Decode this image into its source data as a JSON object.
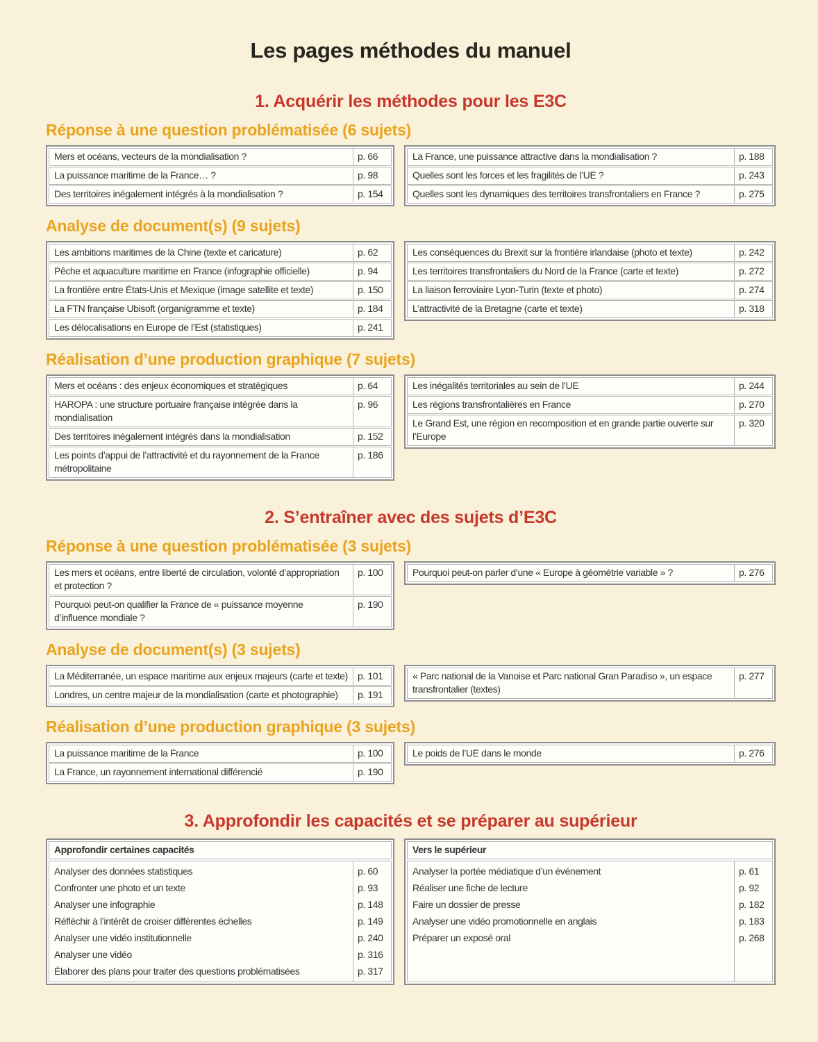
{
  "page_title": "Les pages méthodes du manuel",
  "colors": {
    "background": "#faf1da",
    "section_heading_red": "#c7382c",
    "subsection_heading_orange": "#e9a41f",
    "table_outer_border": "#8d8d8d",
    "table_inner_border": "#b3b3b3",
    "title_text": "#26261f"
  },
  "sections": [
    {
      "heading": "1. Acquérir les méthodes pour les E3C",
      "groups": [
        {
          "subheading": "Réponse à une question problématisée (6 sujets)",
          "left_rows": [
            {
              "label": "Mers et océans, vecteurs de la mondialisation ?",
              "page": "p. 66"
            },
            {
              "label": "La puissance maritime de la France… ?",
              "page": "p. 98"
            },
            {
              "label": "Des territoires inégalement intégrés à la mondialisation ?",
              "page": "p. 154"
            }
          ],
          "right_rows": [
            {
              "label": "La France, une puissance attractive dans la mondialisation ?",
              "page": "p. 188"
            },
            {
              "label": "Quelles sont les forces et les fragilités de l’UE ?",
              "page": "p. 243"
            },
            {
              "label": "Quelles sont les dynamiques des territoires transfrontaliers en France ?",
              "page": "p. 275"
            }
          ]
        },
        {
          "subheading": "Analyse de document(s) (9 sujets)",
          "left_rows": [
            {
              "label": "Les ambitions maritimes de la Chine (texte et caricature)",
              "page": "p. 62"
            },
            {
              "label": "Pêche et aquaculture maritime en France (infographie officielle)",
              "page": "p. 94"
            },
            {
              "label": "La frontière entre États-Unis et Mexique (image satellite et texte)",
              "page": "p. 150"
            },
            {
              "label": "La FTN française Ubisoft (organigramme et texte)",
              "page": "p. 184"
            },
            {
              "label": "Les délocalisations en Europe de l’Est (statistiques)",
              "page": "p. 241"
            }
          ],
          "right_rows": [
            {
              "label": "Les conséquences du Brexit sur la frontière irlandaise (photo et texte)",
              "page": "p. 242"
            },
            {
              "label": "Les territoires transfrontaliers du Nord de la France (carte et texte)",
              "page": "p. 272"
            },
            {
              "label": "La liaison ferroviaire Lyon-Turin (texte et photo)",
              "page": "p. 274"
            },
            {
              "label": "L’attractivité de la Bretagne (carte et texte)",
              "page": "p. 318"
            }
          ]
        },
        {
          "subheading": "Réalisation d’une production graphique (7 sujets)",
          "left_rows": [
            {
              "label": "Mers et océans : des enjeux économiques et stratégiques",
              "page": "p. 64"
            },
            {
              "label": "HAROPA : une structure portuaire française intégrée dans la mondialisation",
              "page": "p. 96"
            },
            {
              "label": "Des territoires inégalement intégrés dans la mondialisation",
              "page": "p. 152"
            },
            {
              "label": "Les points d’appui de l’attractivité et du rayonnement de la France métropolitaine",
              "page": "p. 186"
            }
          ],
          "right_rows": [
            {
              "label": "Les inégalités territoriales au sein de l’UE",
              "page": "p. 244"
            },
            {
              "label": "Les régions transfrontalières en France",
              "page": "p. 270"
            },
            {
              "label": "Le Grand Est, une région en recomposition et en grande partie ouverte sur l’Europe",
              "page": "p. 320"
            }
          ]
        }
      ]
    },
    {
      "heading": "2. S’entraîner avec des sujets d’E3C",
      "groups": [
        {
          "subheading": "Réponse à une question problématisée (3 sujets)",
          "left_rows": [
            {
              "label": "Les mers et océans, entre liberté de circulation, volonté d’appropriation et protection ?",
              "page": "p. 100"
            },
            {
              "label": "Pourquoi peut-on qualifier la France de « puissance moyenne d’influence mondiale ?",
              "page": "p. 190"
            }
          ],
          "right_rows": [
            {
              "label": "Pourquoi peut-on parler d’une « Europe à géométrie variable » ?",
              "page": "p. 276"
            }
          ]
        },
        {
          "subheading": "Analyse de document(s) (3 sujets)",
          "left_rows": [
            {
              "label": "La Méditerranée, un espace maritime aux enjeux majeurs (carte et texte)",
              "page": "p. 101"
            },
            {
              "label": "Londres, un centre majeur de la mondialisation (carte et photographie)",
              "page": "p. 191"
            }
          ],
          "right_rows": [
            {
              "label": "« Parc national de la Vanoise et Parc national Gran Paradiso », un espace transfrontalier (textes)",
              "page": "p. 277"
            }
          ]
        },
        {
          "subheading": "Réalisation d’une production graphique (3 sujets)",
          "left_rows": [
            {
              "label": "La puissance maritime de la France",
              "page": "p. 100"
            },
            {
              "label": "La France, un rayonnement international différencié",
              "page": "p. 190"
            }
          ],
          "right_rows": [
            {
              "label": "Le poids de l’UE dans le monde",
              "page": "p. 276"
            }
          ]
        }
      ]
    }
  ],
  "section3": {
    "heading": "3. Approfondir les capacités et se préparer au supérieur",
    "tables": [
      {
        "header": "Approfondir certaines capacités",
        "rows": [
          {
            "label": "Analyser des données statistiques",
            "page": "p. 60"
          },
          {
            "label": "Confronter une photo et un texte",
            "page": "p. 93"
          },
          {
            "label": "Analyser une infographie",
            "page": "p. 148"
          },
          {
            "label": "Réfléchir à l’intérêt de croiser différentes échelles",
            "page": "p. 149"
          },
          {
            "label": "Analyser une vidéo institutionnelle",
            "page": "p. 240"
          },
          {
            "label": "Analyser une vidéo",
            "page": "p. 316"
          },
          {
            "label": "Élaborer des plans pour traiter des questions problématisées",
            "page": "p. 317"
          }
        ]
      },
      {
        "header": "Vers le supérieur",
        "rows": [
          {
            "label": "Analyser la portée médiatique d’un événement",
            "page": "p. 61"
          },
          {
            "label": "Réaliser une fiche de lecture",
            "page": "p. 92"
          },
          {
            "label": "Faire un dossier de presse",
            "page": "p. 182"
          },
          {
            "label": "Analyser une vidéo promotionnelle en anglais",
            "page": "p. 183"
          },
          {
            "label": "Préparer un exposé oral",
            "page": "p. 268"
          }
        ]
      }
    ]
  }
}
